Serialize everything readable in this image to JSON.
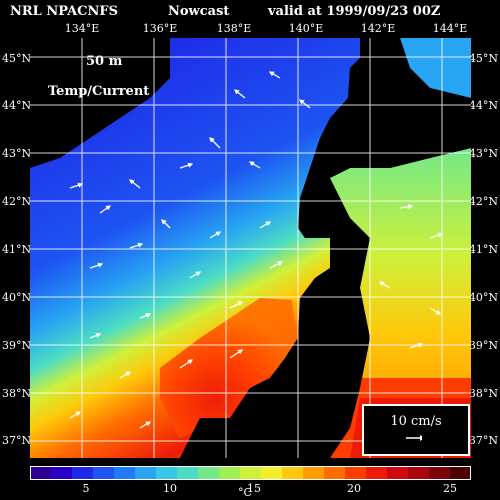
{
  "header": {
    "model": "NRL NPACNFS",
    "type": "Nowcast",
    "valid": "valid at 1999/09/23 00Z"
  },
  "map": {
    "depth": "50 m",
    "field": "Temp/Current",
    "lat_labels": [
      "45°N",
      "44°N",
      "43°N",
      "42°N",
      "41°N",
      "40°N",
      "39°N",
      "38°N",
      "37°N"
    ],
    "lon_labels": [
      "134°E",
      "136°E",
      "138°E",
      "140°E",
      "142°E",
      "144°E"
    ],
    "lat_range": [
      36.6,
      45.3
    ],
    "lon_range": [
      132.8,
      145.0
    ]
  },
  "scale": {
    "label": "10 cm/s"
  },
  "colorbar": {
    "unit": "°C",
    "ticks": [
      "5",
      "10",
      "15",
      "20",
      "25"
    ],
    "tick_values": [
      5,
      10,
      15,
      20,
      25
    ],
    "range": [
      1,
      27
    ],
    "colors": [
      "#2d0093",
      "#2a00c8",
      "#1f28e6",
      "#1d54f2",
      "#1f7cf6",
      "#27a4f2",
      "#35c8e8",
      "#4cdcc4",
      "#72e888",
      "#9ef050",
      "#cff03a",
      "#f6ee2a",
      "#ffc80a",
      "#ff9c00",
      "#ff6c00",
      "#ff3c00",
      "#ee1a08",
      "#cc0a10",
      "#a8060c",
      "#7a0408",
      "#4c0204"
    ]
  }
}
